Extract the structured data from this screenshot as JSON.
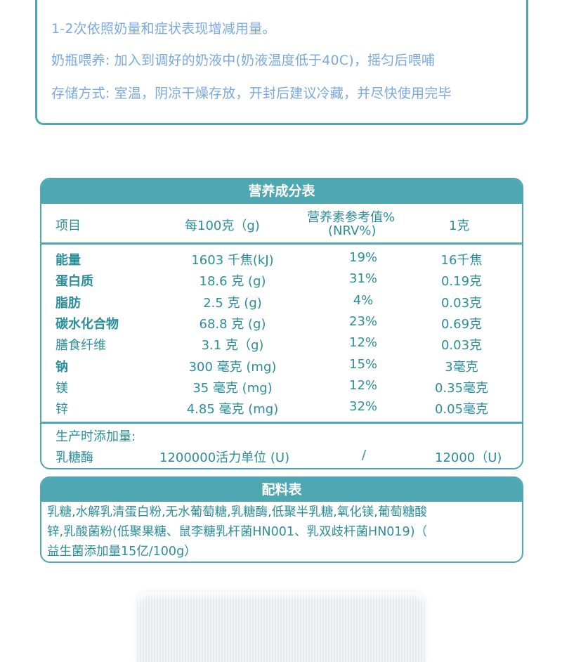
{
  "usage_box": {
    "lines": [
      "1-2次依照奶量和症状表现增减用量。",
      "奶瓶喂养: 加入到调好的奶液中(奶液温度低于40C)，摇匀后喂哺",
      "存储方式: 室温，阴凉干燥存放，开封后建议冷藏，并尽快使用完毕"
    ]
  },
  "nutrition": {
    "title": "营养成分表",
    "headers": [
      "项目",
      "每100克（g)",
      "营养素参考值%",
      "(NRV%)",
      "1克"
    ],
    "rows": [
      {
        "name": "能量",
        "bold": true,
        "per100": "1603 千焦(kJ)",
        "nrv": "19%",
        "per1": "16千焦"
      },
      {
        "name": "蛋白质",
        "bold": true,
        "per100": "18.6 克 (g)",
        "nrv": "31%",
        "per1": "0.19克"
      },
      {
        "name": "脂肪",
        "bold": true,
        "per100": "2.5 克 (g)",
        "nrv": "4%",
        "per1": "0.03克"
      },
      {
        "name": "碳水化合物",
        "bold": true,
        "per100": "68.8 克 (g)",
        "nrv": "23%",
        "per1": "0.69克"
      },
      {
        "name": "膳食纤维",
        "bold": false,
        "per100": "3.1 克（g)",
        "nrv": "12%",
        "per1": "0.03克"
      },
      {
        "name": "钠",
        "bold": true,
        "per100": "300 毫克 (mg)",
        "nrv": "15%",
        "per1": "3毫克"
      },
      {
        "name": "镁",
        "bold": false,
        "per100": "35 毫克 (mg)",
        "nrv": "12%",
        "per1": "0.35毫克"
      },
      {
        "name": "锌",
        "bold": false,
        "per100": "4.85 毫克 (mg)",
        "nrv": "32%",
        "per1": "0.05毫克"
      }
    ],
    "added_label": "生产时添加量:",
    "added": {
      "name": "乳糖酶",
      "per100": "1200000活力单位 (U)",
      "nrv": "/",
      "per1": "12000（U)"
    }
  },
  "ingredients": {
    "title": "配料表",
    "lines": [
      "乳糖,水解乳清蛋白粉,无水葡萄糖,乳糖酶,低聚半乳糖,氧化镁,葡萄糖酸",
      "锌,乳酸菌粉(低聚果糖、鼠李糖乳杆菌HN001、乳双歧杆菌HN019)（",
      "益生菌添加量15亿/100g）"
    ]
  },
  "colors": {
    "accent": "#4ea7b3",
    "text_teal": "#2b8e9a",
    "text_blue": "#7aa8e2"
  }
}
